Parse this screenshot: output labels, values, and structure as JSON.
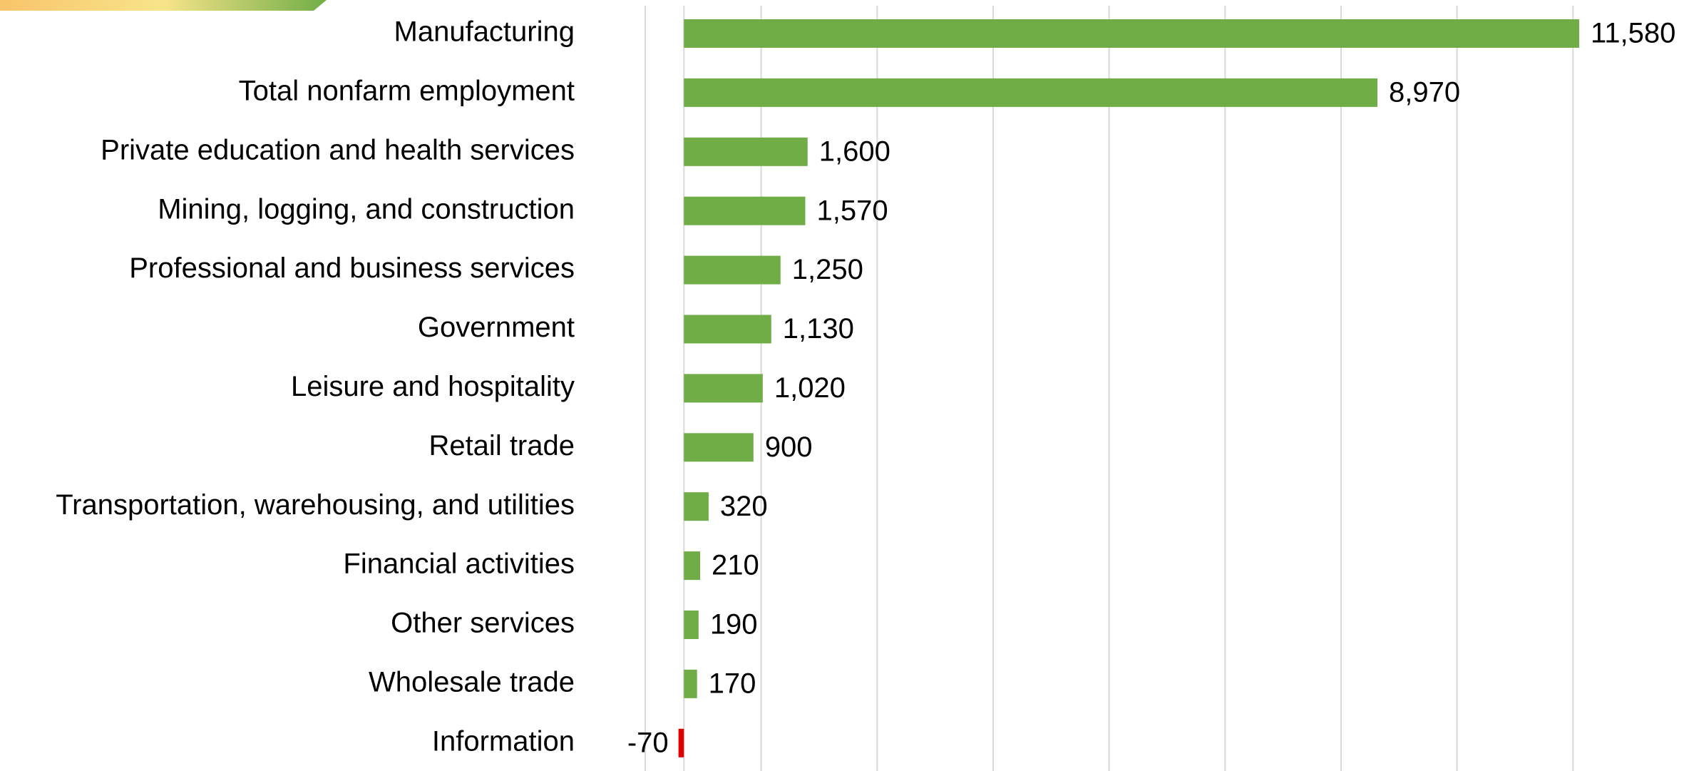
{
  "chart_data": {
    "type": "hbar",
    "categories": [
      "Manufacturing",
      "Total nonfarm employment",
      "Private education and health services",
      "Mining, logging, and construction",
      "Professional and business services",
      "Government",
      "Leisure and hospitality",
      "Retail trade",
      "Transportation, warehousing, and utilities",
      "Financial activities",
      "Other services",
      "Wholesale trade",
      "Information"
    ],
    "values": [
      11580,
      8970,
      1600,
      1570,
      1250,
      1130,
      1020,
      900,
      320,
      210,
      190,
      170,
      -70
    ],
    "value_labels": [
      "11,580",
      "8,970",
      "1,600",
      "1,570",
      "1,250",
      "1,130",
      "1,020",
      "900",
      "320",
      "210",
      "190",
      "170",
      "-70"
    ],
    "color": "#70ad47",
    "negative_color": "#e00000",
    "xlim": [
      -500,
      13000
    ],
    "xticks": [
      -500,
      1000,
      2500,
      4000,
      5500,
      7000,
      8500,
      10000,
      11500
    ],
    "grid": true
  }
}
